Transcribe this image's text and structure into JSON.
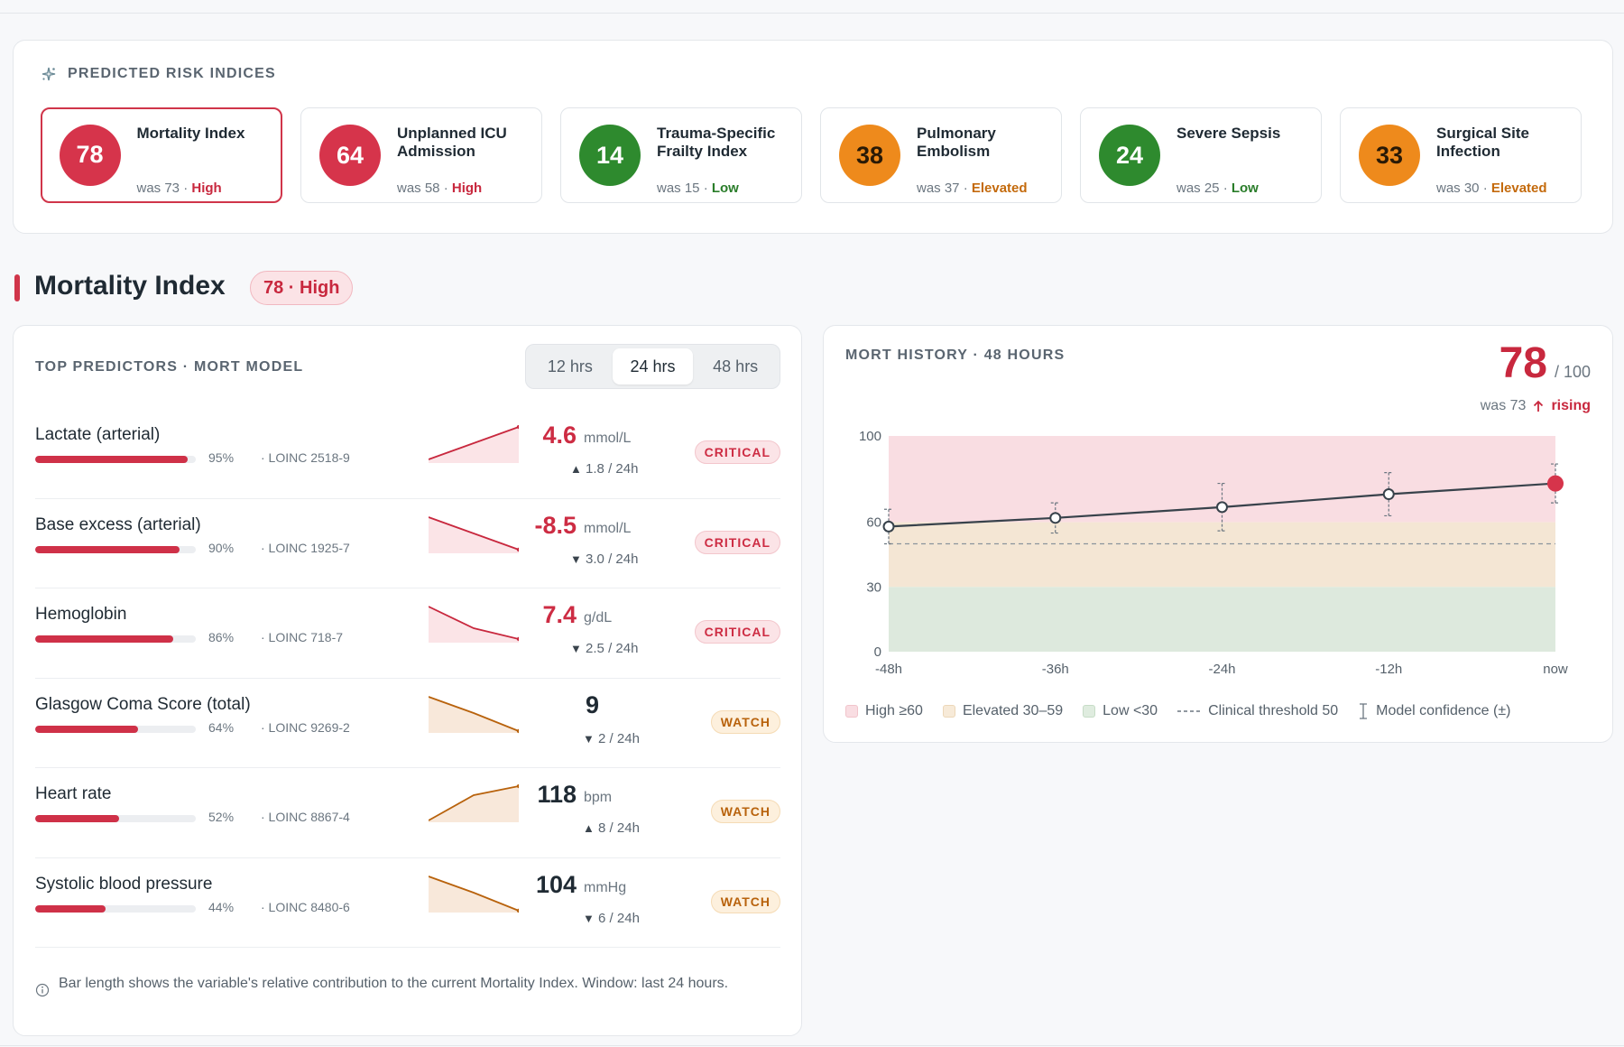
{
  "risk_panel": {
    "title": "PREDICTED RISK INDICES",
    "cards": [
      {
        "score": "78",
        "name": "Mortality Index",
        "was": "was 73 · ",
        "level": "High",
        "level_class": "high",
        "selected": true
      },
      {
        "score": "64",
        "name": "Unplanned ICU Admission",
        "was": "was 58 · ",
        "level": "High",
        "level_class": "high",
        "selected": false
      },
      {
        "score": "14",
        "name": "Trauma-Specific Frailty Index",
        "was": "was 15 · ",
        "level": "Low",
        "level_class": "low",
        "selected": false
      },
      {
        "score": "38",
        "name": "Pulmonary Embolism",
        "was": "was 37 · ",
        "level": "Elevated",
        "level_class": "elevated",
        "selected": false
      },
      {
        "score": "24",
        "name": "Severe Sepsis",
        "was": "was 25 · ",
        "level": "Low",
        "level_class": "low",
        "selected": false
      },
      {
        "score": "33",
        "name": "Surgical Site Infection",
        "was": "was 30 · ",
        "level": "Elevated",
        "level_class": "elevated",
        "selected": false
      }
    ]
  },
  "section": {
    "title": "Mortality Index",
    "badge": "78 · High"
  },
  "predictors": {
    "title": "TOP PREDICTORS · MORT MODEL",
    "tabs": [
      "12 hrs",
      "24 hrs",
      "48 hrs"
    ],
    "active_tab": 1,
    "rows": [
      {
        "name": "Lactate (arterial)",
        "pct": "95%",
        "pct_value": 0.95,
        "loinc": "· LOINC 2518-9",
        "value": "4.6",
        "unit": "mmol/L",
        "delta_dir": "▲",
        "delta": "1.8 / 24h",
        "status": "CRITICAL",
        "kind": "crit",
        "trend": [
          0.1,
          0.55,
          1.0
        ]
      },
      {
        "name": "Base excess (arterial)",
        "pct": "90%",
        "pct_value": 0.9,
        "loinc": "· LOINC 1925-7",
        "value": "-8.5",
        "unit": "mmol/L",
        "delta_dir": "▼",
        "delta": "3.0 / 24h",
        "status": "CRITICAL",
        "kind": "crit",
        "trend": [
          1.0,
          0.55,
          0.1
        ]
      },
      {
        "name": "Hemoglobin",
        "pct": "86%",
        "pct_value": 0.86,
        "loinc": "· LOINC 718-7",
        "value": "7.4",
        "unit": "g/dL",
        "delta_dir": "▼",
        "delta": "2.5 / 24h",
        "status": "CRITICAL",
        "kind": "crit",
        "trend": [
          1.0,
          0.4,
          0.1
        ]
      },
      {
        "name": "Glasgow Coma Score (total)",
        "pct": "64%",
        "pct_value": 0.64,
        "loinc": "· LOINC 9269-2",
        "value": "9",
        "unit": "",
        "delta_dir": "▼",
        "delta": "2 / 24h",
        "status": "WATCH",
        "kind": "watch",
        "trend": [
          1.0,
          0.55,
          0.05
        ]
      },
      {
        "name": "Heart rate",
        "pct": "52%",
        "pct_value": 0.52,
        "loinc": "· LOINC 8867-4",
        "value": "118",
        "unit": "bpm",
        "delta_dir": "▲",
        "delta": "8 / 24h",
        "status": "WATCH",
        "kind": "watch",
        "trend": [
          0.05,
          0.75,
          1.0
        ]
      },
      {
        "name": "Systolic blood pressure",
        "pct": "44%",
        "pct_value": 0.44,
        "loinc": "· LOINC 8480-6",
        "value": "104",
        "unit": "mmHg",
        "delta_dir": "▼",
        "delta": "6 / 24h",
        "status": "WATCH",
        "kind": "watch",
        "trend": [
          1.0,
          0.55,
          0.05
        ]
      }
    ],
    "footnote": "Bar length shows the variable's relative contribution to the current Mortality Index. Window: last 24 hours."
  },
  "history": {
    "title": "MORT HISTORY · 48 HOURS",
    "score": "78",
    "out_of": "/ 100",
    "was": "was 73",
    "trend_word": "rising",
    "legend": [
      "High ≥60",
      "Elevated 30–59",
      "Low <30",
      "Clinical threshold 50",
      "Model confidence (±)"
    ]
  },
  "chart_data": {
    "type": "line",
    "title": "MORT HISTORY · 48 HOURS",
    "x": [
      "-48h",
      "-36h",
      "-24h",
      "-12h",
      "now"
    ],
    "y_ticks": [
      "0",
      "30",
      "60",
      "100"
    ],
    "ylim": [
      0,
      100
    ],
    "series": [
      {
        "values": [
          58,
          62,
          67,
          73,
          78
        ],
        "ci": [
          8,
          7,
          11,
          10,
          9
        ]
      }
    ],
    "bands": [
      {
        "label": "High ≥60",
        "from": 60,
        "to": 100,
        "color": "#f9dde2"
      },
      {
        "label": "Elevated 30–59",
        "from": 30,
        "to": 60,
        "color": "#f4e6d4"
      },
      {
        "label": "Low <30",
        "from": 0,
        "to": 30,
        "color": "#dde9dd"
      }
    ],
    "threshold": 50,
    "line_color": "#38424b",
    "point_color": "#d6344b",
    "legend": "bottom"
  }
}
